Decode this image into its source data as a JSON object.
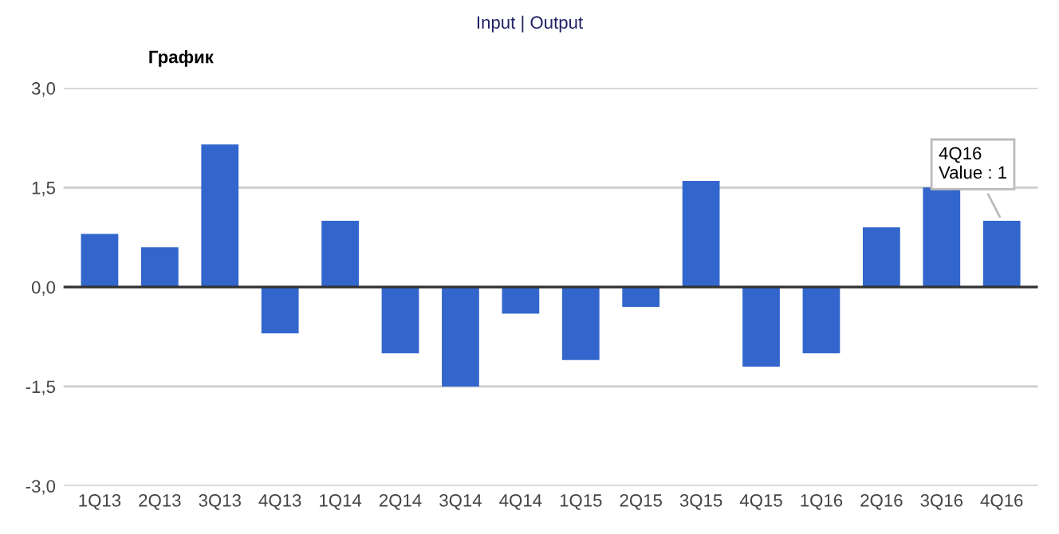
{
  "chart_data": {
    "type": "bar",
    "title": "График",
    "categories": [
      "1Q13",
      "2Q13",
      "3Q13",
      "4Q13",
      "1Q14",
      "2Q14",
      "3Q14",
      "4Q14",
      "1Q15",
      "2Q15",
      "3Q15",
      "4Q15",
      "1Q16",
      "2Q16",
      "3Q16",
      "4Q16"
    ],
    "values": [
      0.8,
      0.6,
      2.15,
      -0.7,
      1.0,
      -1.0,
      -1.5,
      -0.4,
      -1.1,
      -0.3,
      1.6,
      -1.2,
      -1.0,
      0.9,
      1.5,
      1
    ],
    "color": "#3366cc",
    "ylim": [
      -3.0,
      3.0
    ],
    "yticks": [
      {
        "value": -3.0,
        "label": "-3,0"
      },
      {
        "value": -1.5,
        "label": "-1,5"
      },
      {
        "value": 0,
        "label": "0,0"
      },
      {
        "value": 1.5,
        "label": "1,5"
      },
      {
        "value": 3.0,
        "label": "3,0"
      }
    ],
    "grid": "y",
    "ref_lines": [
      {
        "axis": "y",
        "value": 0,
        "color": "#333333"
      }
    ],
    "annotations": [
      "Input | Output",
      {
        "text": "4Q16\nValue : 1",
        "x": "4Q16",
        "y": 1
      }
    ]
  }
}
